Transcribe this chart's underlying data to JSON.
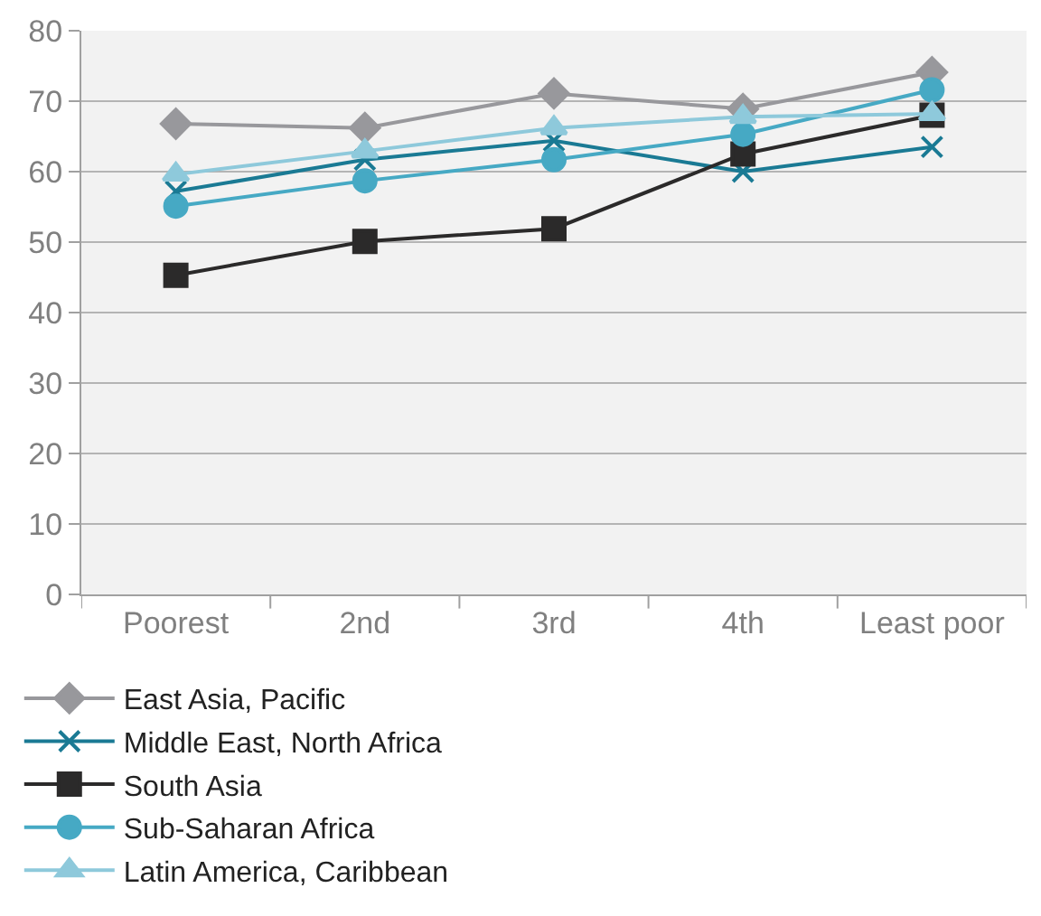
{
  "chart_data": {
    "type": "line",
    "categories": [
      "Poorest",
      "2nd",
      "3rd",
      "4th",
      "Least poor"
    ],
    "series": [
      {
        "name": "East Asia, Pacific",
        "color": "#98989c",
        "marker": "diamond",
        "values": [
          66.8,
          66.2,
          71.1,
          68.9,
          74.1
        ]
      },
      {
        "name": "Latin America, Caribbean",
        "color": "#8ec9db",
        "marker": "triangle",
        "values": [
          59.6,
          62.9,
          66.2,
          67.8,
          68.2
        ]
      },
      {
        "name": "Middle East, North Africa",
        "color": "#1a7a94",
        "marker": "cross",
        "values": [
          57.2,
          61.7,
          64.4,
          60.0,
          63.5
        ]
      },
      {
        "name": "South Asia",
        "color": "#2b2a2a",
        "marker": "square",
        "values": [
          45.3,
          50.1,
          51.9,
          62.5,
          68.0
        ]
      },
      {
        "name": "Sub-Saharan Africa",
        "color": "#46a9c4",
        "marker": "circle",
        "values": [
          55.1,
          58.7,
          61.7,
          65.3,
          71.6
        ]
      }
    ],
    "ylim": [
      0,
      80
    ],
    "yticks": [
      0,
      10,
      20,
      30,
      40,
      50,
      60,
      70,
      80
    ],
    "grid": "y",
    "legend": "bottom",
    "line_style": "solid"
  }
}
